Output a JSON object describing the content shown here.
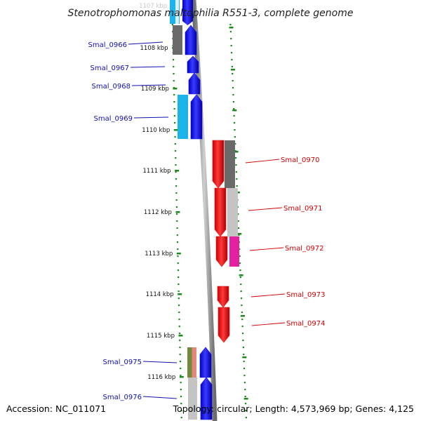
{
  "title": "Stenotrophomonas maltophilia R551-3, complete genome",
  "footer": {
    "accession": "Accession: NC_011071",
    "summary": "Topology: circular; Length: 4,573,969 bp; Genes: 4,125"
  },
  "colors": {
    "forward_gene": "#1010e8",
    "reverse_gene": "#ee1010",
    "cyan_feature": "#1ab4ea",
    "dark_gray_feature": "#6a6a6a",
    "light_gray_feature": "#c4c4c4",
    "magenta_feature": "#e41fa0",
    "olive_feature": "#6f8a3c",
    "salmon_feature": "#e4857a",
    "backbone": "#8e8e8e",
    "ruler_dots": "#1a8a1a",
    "label_blue": "#1010b0",
    "label_red": "#d00000"
  },
  "ticks": [
    {
      "label": "1107 kbp",
      "faded": true
    },
    {
      "label": "1108 kbp",
      "faded": false
    },
    {
      "label": "1109 kbp",
      "faded": false
    },
    {
      "label": "1110 kbp",
      "faded": false
    },
    {
      "label": "1111 kbp",
      "faded": false
    },
    {
      "label": "1112 kbp",
      "faded": false
    },
    {
      "label": "1113 kbp",
      "faded": false
    },
    {
      "label": "1114 kbp",
      "faded": false
    },
    {
      "label": "1115 kbp",
      "faded": false
    },
    {
      "label": "1116 kbp",
      "faded": false
    }
  ],
  "genes": [
    {
      "name": "Smal_0966",
      "strand": "forward",
      "features": [
        "dark_gray"
      ]
    },
    {
      "name": "Smal_0967",
      "strand": "forward",
      "features": []
    },
    {
      "name": "Smal_0968",
      "strand": "forward",
      "features": []
    },
    {
      "name": "Smal_0969",
      "strand": "forward",
      "features": [
        "cyan"
      ]
    },
    {
      "name": "Smal_0970",
      "strand": "reverse",
      "features": [
        "dark_gray"
      ]
    },
    {
      "name": "Smal_0971",
      "strand": "reverse",
      "features": [
        "light_gray"
      ]
    },
    {
      "name": "Smal_0972",
      "strand": "reverse",
      "features": [
        "magenta"
      ]
    },
    {
      "name": "Smal_0973",
      "strand": "reverse",
      "features": []
    },
    {
      "name": "Smal_0974",
      "strand": "reverse",
      "features": []
    },
    {
      "name": "Smal_0975",
      "strand": "forward",
      "features": [
        "olive",
        "salmon"
      ]
    },
    {
      "name": "Smal_0976",
      "strand": "forward",
      "features": [
        "light_gray"
      ]
    }
  ]
}
